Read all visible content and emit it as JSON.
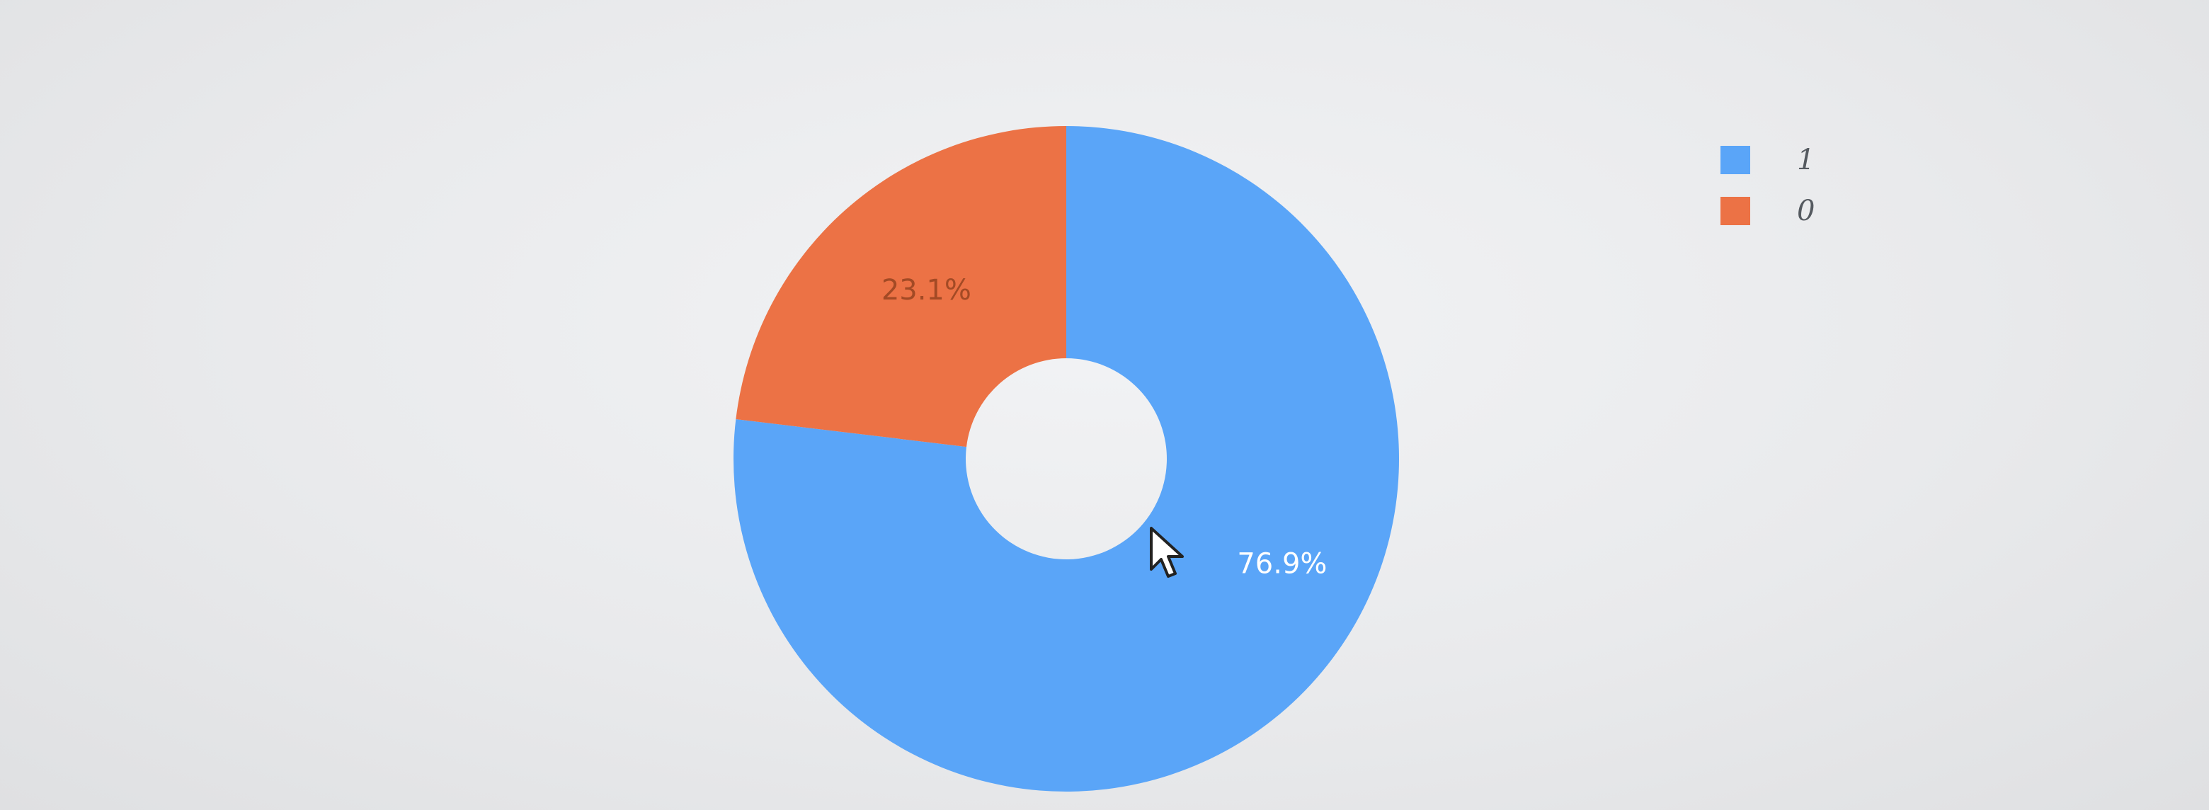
{
  "chart_data": {
    "type": "pie",
    "hole": true,
    "labels": [
      "1",
      "0"
    ],
    "values": [
      76.9,
      23.1
    ],
    "value_labels": [
      "76.9%",
      "23.1%"
    ],
    "colors": [
      "#5aa5f8",
      "#ec7245"
    ],
    "label_colors": [
      "#ffffff",
      "#a34a25"
    ],
    "title": "",
    "legend_position": "top-right",
    "direction": "clockwise",
    "start": "top"
  },
  "legend": {
    "items": [
      {
        "label": "1",
        "color": "#5aa5f8"
      },
      {
        "label": "0",
        "color": "#ec7245"
      }
    ]
  },
  "cursor": {
    "icon": "mouse-pointer-icon"
  }
}
